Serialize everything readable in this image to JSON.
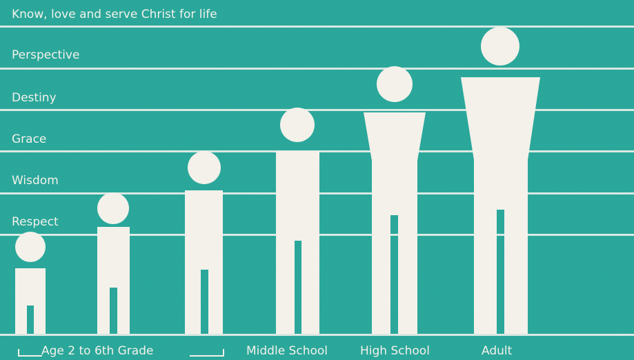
{
  "rungs": [
    "Know, love and serve Christ for life",
    "Perspective",
    "Destiny",
    "Grace",
    "Wisdom",
    "Respect"
  ],
  "captions": {
    "age": "Age 2 to 6th Grade",
    "middle": "Middle School",
    "high": "High School",
    "adult": "Adult"
  },
  "colors": {
    "background": "#2aa89b",
    "figure": "#f3f1ea",
    "line": "#e9efe9"
  }
}
